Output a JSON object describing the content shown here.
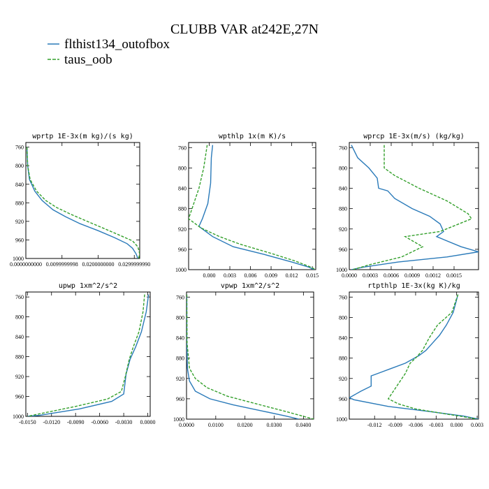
{
  "figure": {
    "title": "CLUBB VAR at242E,27N",
    "legend": [
      {
        "name": "flthist134_outofbox",
        "color": "#2a7ab9",
        "dash": "solid"
      },
      {
        "name": "taus_oob",
        "color": "#34a02c",
        "dash": "dashed"
      }
    ]
  },
  "chart_data": [
    {
      "type": "line",
      "title": "wprtp  1E-3x(m kg)/(s kg)",
      "xlim": [
        0,
        0.0315
      ],
      "ylim": [
        1000,
        750
      ],
      "xticks": [
        0,
        0.0099999998,
        0.02,
        0.029999999
      ],
      "xtick_labels": [
        "0.0000000000",
        "0.0099999998",
        "0.0200000000",
        "0.0299999990"
      ],
      "yticks": [
        760,
        800,
        840,
        880,
        920,
        960,
        1000
      ],
      "ytick_labels": [
        "760",
        "800",
        "840",
        "880",
        "920",
        "960",
        "1000"
      ],
      "series": [
        {
          "name": "flthist134_outofbox",
          "points": [
            [
              0.0003,
              760
            ],
            [
              0.0005,
              800
            ],
            [
              0.001,
              830
            ],
            [
              0.0025,
              855
            ],
            [
              0.0045,
              875
            ],
            [
              0.0075,
              895
            ],
            [
              0.011,
              910
            ],
            [
              0.015,
              925
            ],
            [
              0.02,
              940
            ],
            [
              0.0245,
              955
            ],
            [
              0.028,
              968
            ],
            [
              0.0295,
              978
            ],
            [
              0.0305,
              990
            ],
            [
              0.031,
              1000
            ]
          ]
        },
        {
          "name": "taus_oob",
          "points": [
            [
              0.0003,
              760
            ],
            [
              0.0005,
              800
            ],
            [
              0.0012,
              830
            ],
            [
              0.003,
              855
            ],
            [
              0.0055,
              875
            ],
            [
              0.0085,
              890
            ],
            [
              0.0125,
              905
            ],
            [
              0.017,
              920
            ],
            [
              0.0215,
              935
            ],
            [
              0.026,
              950
            ],
            [
              0.0295,
              962
            ],
            [
              0.031,
              975
            ],
            [
              0.0315,
              990
            ],
            [
              0.0312,
              1000
            ]
          ]
        }
      ]
    },
    {
      "type": "line",
      "title": "wpthlp  1x(m K)/s",
      "xlim": [
        -0.003,
        0.0155
      ],
      "ylim": [
        1000,
        750
      ],
      "xticks": [
        0,
        0.003,
        0.006,
        0.009,
        0.012,
        0.015
      ],
      "xtick_labels": [
        "0.000",
        "0.003",
        "0.006",
        "0.009",
        "0.012",
        "0.015"
      ],
      "yticks": [
        760,
        800,
        840,
        880,
        920,
        960,
        1000
      ],
      "ytick_labels": [
        "760",
        "800",
        "840",
        "880",
        "920",
        "960",
        "1000"
      ],
      "series": [
        {
          "name": "flthist134_outofbox",
          "points": [
            [
              0.0005,
              755
            ],
            [
              0.0003,
              780
            ],
            [
              0.0002,
              830
            ],
            [
              -0.0002,
              870
            ],
            [
              -0.001,
              900
            ],
            [
              -0.0015,
              915
            ],
            [
              0.0005,
              935
            ],
            [
              0.0035,
              955
            ],
            [
              0.008,
              970
            ],
            [
              0.012,
              985
            ],
            [
              0.0145,
              995
            ],
            [
              0.0152,
              1000
            ]
          ]
        },
        {
          "name": "taus_oob",
          "points": [
            [
              -0.0003,
              755
            ],
            [
              -0.0008,
              800
            ],
            [
              -0.0015,
              840
            ],
            [
              -0.0025,
              880
            ],
            [
              -0.003,
              900
            ],
            [
              -0.0012,
              918
            ],
            [
              0.0015,
              935
            ],
            [
              0.0045,
              950
            ],
            [
              0.009,
              968
            ],
            [
              0.0125,
              983
            ],
            [
              0.0148,
              995
            ],
            [
              0.0155,
              1000
            ]
          ]
        }
      ]
    },
    {
      "type": "line",
      "title": "wprcp  1E-3x(m/s) (kg/kg)",
      "xlim": [
        0,
        0.00185
      ],
      "ylim": [
        1000,
        750
      ],
      "xticks": [
        0,
        0.0003,
        0.0006,
        0.0009,
        0.0012,
        0.0015
      ],
      "xtick_labels": [
        "0.0000",
        "0.0003",
        "0.0006",
        "0.0009",
        "0.0012",
        "0.0015"
      ],
      "yticks": [
        760,
        800,
        840,
        880,
        920,
        960,
        1000
      ],
      "ytick_labels": [
        "760",
        "800",
        "840",
        "880",
        "920",
        "960",
        "1000"
      ],
      "series": [
        {
          "name": "flthist134_outofbox",
          "points": [
            [
              3e-05,
              755
            ],
            [
              0.00012,
              780
            ],
            [
              0.00028,
              800
            ],
            [
              0.0004,
              820
            ],
            [
              0.00042,
              840
            ],
            [
              0.00055,
              845
            ],
            [
              0.00065,
              860
            ],
            [
              0.0009,
              880
            ],
            [
              0.00115,
              895
            ],
            [
              0.0013,
              910
            ],
            [
              0.00135,
              925
            ],
            [
              0.00125,
              935
            ],
            [
              0.0016,
              955
            ],
            [
              0.00185,
              965
            ],
            [
              0.0014,
              975
            ],
            [
              0.0007,
              985
            ],
            [
              0.0002,
              995
            ],
            [
              3e-05,
              1000
            ]
          ]
        },
        {
          "name": "taus_oob",
          "points": [
            [
              0.0005,
              755
            ],
            [
              0.0005,
              800
            ],
            [
              0.00065,
              815
            ],
            [
              0.001,
              840
            ],
            [
              0.0014,
              865
            ],
            [
              0.0017,
              890
            ],
            [
              0.00175,
              900
            ],
            [
              0.0013,
              925
            ],
            [
              0.0008,
              935
            ],
            [
              0.00105,
              955
            ],
            [
              0.00075,
              975
            ],
            [
              0.0003,
              990
            ],
            [
              5e-05,
              1000
            ]
          ]
        }
      ]
    },
    {
      "type": "line",
      "title": "upwp  1xm^2/s^2",
      "xlim": [
        -0.0152,
        0.0003
      ],
      "ylim": [
        1000,
        750
      ],
      "xticks": [
        -0.015,
        -0.012,
        -0.009,
        -0.006,
        -0.003,
        0
      ],
      "xtick_labels": [
        "-0.0150",
        "-0.0120",
        "-0.0090",
        "-0.0060",
        "-0.0030",
        "0.0000"
      ],
      "yticks": [
        760,
        800,
        840,
        880,
        920,
        960,
        1000
      ],
      "ytick_labels": [
        "760",
        "800",
        "840",
        "880",
        "920",
        "960",
        "1000"
      ],
      "series": [
        {
          "name": "flthist134_outofbox",
          "points": [
            [
              0.0001,
              755
            ],
            [
              -0.0002,
              790
            ],
            [
              -0.0008,
              830
            ],
            [
              -0.0015,
              860
            ],
            [
              -0.0022,
              885
            ],
            [
              -0.0027,
              915
            ],
            [
              -0.003,
              955
            ],
            [
              -0.0045,
              970
            ],
            [
              -0.0085,
              985
            ],
            [
              -0.0135,
              998
            ],
            [
              -0.015,
              1000
            ]
          ]
        },
        {
          "name": "taus_oob",
          "points": [
            [
              -0.0004,
              755
            ],
            [
              -0.0006,
              790
            ],
            [
              -0.0011,
              830
            ],
            [
              -0.0018,
              860
            ],
            [
              -0.0023,
              885
            ],
            [
              -0.0028,
              920
            ],
            [
              -0.0033,
              950
            ],
            [
              -0.005,
              965
            ],
            [
              -0.009,
              980
            ],
            [
              -0.0135,
              995
            ],
            [
              -0.015,
              1000
            ]
          ]
        }
      ]
    },
    {
      "type": "line",
      "title": "vpwp  1xm^2/s^2",
      "xlim": [
        0,
        0.0435
      ],
      "ylim": [
        1000,
        750
      ],
      "xticks": [
        0,
        0.01,
        0.02,
        0.03,
        0.04
      ],
      "xtick_labels": [
        "0.0000",
        "0.0100",
        "0.0200",
        "0.0300",
        "0.0400"
      ],
      "yticks": [
        760,
        800,
        840,
        880,
        920,
        960,
        1000
      ],
      "ytick_labels": [
        "760",
        "800",
        "840",
        "880",
        "920",
        "960",
        "1000"
      ],
      "series": [
        {
          "name": "flthist134_outofbox",
          "points": [
            [
              0.0001,
              755
            ],
            [
              0.0001,
              850
            ],
            [
              0.0003,
              900
            ],
            [
              0.001,
              925
            ],
            [
              0.003,
              945
            ],
            [
              0.008,
              960
            ],
            [
              0.016,
              972
            ],
            [
              0.026,
              984
            ],
            [
              0.034,
              994
            ],
            [
              0.0385,
              1000
            ]
          ]
        },
        {
          "name": "taus_oob",
          "points": [
            [
              0.0001,
              755
            ],
            [
              0.0002,
              850
            ],
            [
              0.001,
              900
            ],
            [
              0.003,
              920
            ],
            [
              0.007,
              938
            ],
            [
              0.014,
              955
            ],
            [
              0.024,
              970
            ],
            [
              0.034,
              985
            ],
            [
              0.041,
              996
            ],
            [
              0.0435,
              1000
            ]
          ]
        }
      ]
    },
    {
      "type": "line",
      "title": "rtpthlp  1E-3x(kg K)/kg",
      "xlim": [
        -0.0157,
        0.0032
      ],
      "ylim": [
        1000,
        750
      ],
      "xticks": [
        -0.012,
        -0.009,
        -0.006,
        -0.003,
        0,
        0.003
      ],
      "xtick_labels": [
        "-0.012",
        "-0.009",
        "-0.006",
        "-0.003",
        "0.000",
        "0.003"
      ],
      "yticks": [
        760,
        800,
        840,
        880,
        920,
        960,
        1000
      ],
      "ytick_labels": [
        "760",
        "800",
        "840",
        "880",
        "920",
        "960",
        "1000"
      ],
      "series": [
        {
          "name": "flthist134_outofbox",
          "points": [
            [
              0.0002,
              755
            ],
            [
              -0.0005,
              790
            ],
            [
              -0.0015,
              815
            ],
            [
              -0.0025,
              835
            ],
            [
              -0.0035,
              850
            ],
            [
              -0.0045,
              865
            ],
            [
              -0.0055,
              875
            ],
            [
              -0.0075,
              890
            ],
            [
              -0.0095,
              900
            ],
            [
              -0.0115,
              910
            ],
            [
              -0.0125,
              915
            ],
            [
              -0.0125,
              935
            ],
            [
              -0.014,
              945
            ],
            [
              -0.0157,
              958
            ],
            [
              -0.015,
              962
            ],
            [
              -0.01,
              975
            ],
            [
              -0.004,
              985
            ],
            [
              0.001,
              994
            ],
            [
              0.0032,
              1000
            ]
          ]
        },
        {
          "name": "taus_oob",
          "points": [
            [
              0.0002,
              755
            ],
            [
              -0.0007,
              790
            ],
            [
              -0.0028,
              815
            ],
            [
              -0.004,
              840
            ],
            [
              -0.005,
              865
            ],
            [
              -0.006,
              880
            ],
            [
              -0.0068,
              890
            ],
            [
              -0.0075,
              910
            ],
            [
              -0.0085,
              930
            ],
            [
              -0.0095,
              950
            ],
            [
              -0.01,
              960
            ],
            [
              -0.0085,
              970
            ],
            [
              -0.006,
              980
            ],
            [
              -0.0015,
              990
            ],
            [
              0.0018,
              997
            ],
            [
              0.003,
              1000
            ]
          ]
        }
      ]
    }
  ]
}
